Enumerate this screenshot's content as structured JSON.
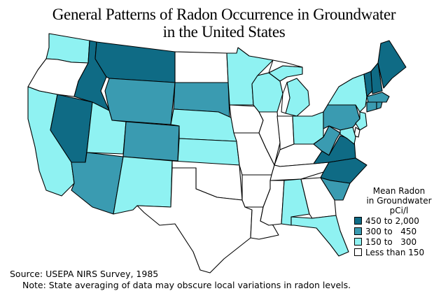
{
  "title": {
    "line1": "General Patterns of Radon Occurrence in Groundwater",
    "line2": "in the United States"
  },
  "legend": {
    "title_line1": "Mean Radon",
    "title_line2": "in Groundwater",
    "title_line3": "pCi/l",
    "items": [
      {
        "label": "450 to 2,000",
        "color": "#0f6b85"
      },
      {
        "label": "300 to   450",
        "color": "#3a9bb1"
      },
      {
        "label": "150 to   300",
        "color": "#8ff2f2"
      },
      {
        "label": "Less than 150",
        "color": "#ffffff"
      }
    ]
  },
  "source": "Source: USEPA NIRS Survey, 1985",
  "note": "Note: State averaging of data may obscure local variations in radon levels.",
  "state_categories": {
    "WA": 2,
    "OR": 3,
    "CA": 2,
    "NV": 0,
    "ID": 0,
    "MT": 0,
    "WY": 1,
    "UT": 2,
    "CO": 1,
    "AZ": 1,
    "NM": 2,
    "ND": 3,
    "SD": 1,
    "NE": 2,
    "KS": 2,
    "OK": 3,
    "TX": 3,
    "MN": 2,
    "IA": 3,
    "MO": 3,
    "AR": 3,
    "LA": 3,
    "WI": 2,
    "IL": 3,
    "MS": 3,
    "MI": 2,
    "IN": 3,
    "KY": 3,
    "TN": 3,
    "AL": 2,
    "OH": 2,
    "WV": 1,
    "VA": 0,
    "NC": 0,
    "SC": 1,
    "GA": 3,
    "FL": 2,
    "PA": 1,
    "NY": 2,
    "VT": 0,
    "NH": 0,
    "ME": 0,
    "MA": 1,
    "CT": 1,
    "RI": 1,
    "NJ": 2,
    "DE": 3,
    "MD": 2
  }
}
